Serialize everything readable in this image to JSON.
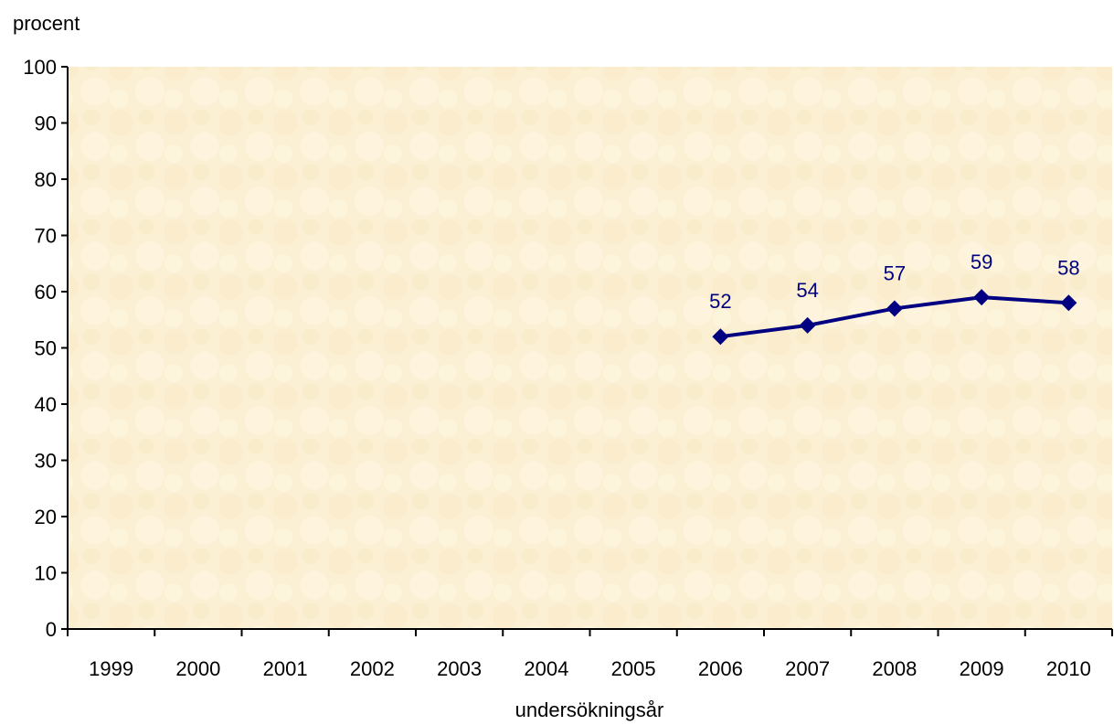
{
  "chart_data": {
    "type": "line",
    "title": "",
    "xlabel": "undersökningsår",
    "ylabel": "procent",
    "categories": [
      "1999",
      "2000",
      "2001",
      "2002",
      "2003",
      "2004",
      "2005",
      "2006",
      "2007",
      "2008",
      "2009",
      "2010"
    ],
    "series": [
      {
        "values": [
          null,
          null,
          null,
          null,
          null,
          null,
          null,
          52,
          54,
          57,
          59,
          58
        ],
        "labels": [
          "",
          "",
          "",
          "",
          "",
          "",
          "",
          "52",
          "54",
          "57",
          "59",
          "58"
        ],
        "color": "#000080",
        "marker": "diamond"
      }
    ],
    "ylim": [
      0,
      100
    ],
    "yticks": [
      "0",
      "10",
      "20",
      "30",
      "40",
      "50",
      "60",
      "70",
      "80",
      "90",
      "100"
    ],
    "ytick_values": [
      0,
      10,
      20,
      30,
      40,
      50,
      60,
      70,
      80,
      90,
      100
    ],
    "grid": false,
    "legend": "none",
    "plot_background": "#fdf1d6"
  }
}
